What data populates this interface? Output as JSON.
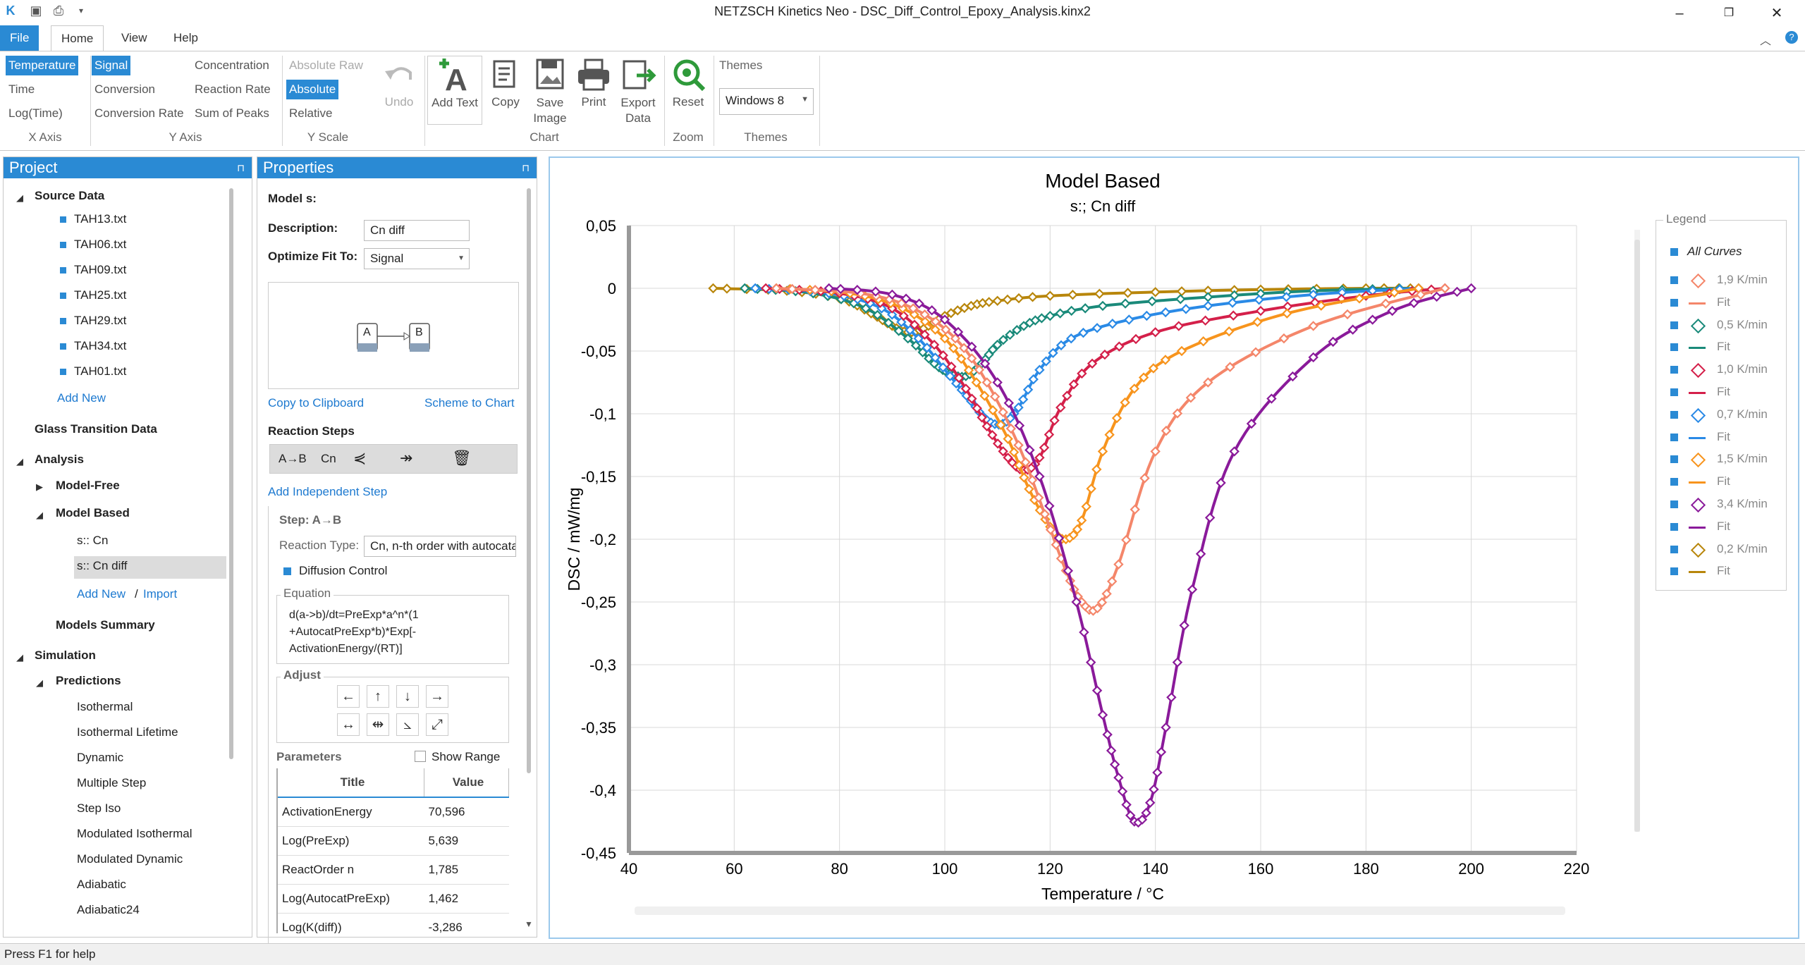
{
  "window": {
    "title": "NETZSCH Kinetics Neo - DSC_Diff_Control_Epoxy_Analysis.kinx2"
  },
  "tabs": [
    "File",
    "Home",
    "View",
    "Help"
  ],
  "ribbon": {
    "x_axis": {
      "items": [
        "Temperature",
        "Time",
        "Log(Time)"
      ],
      "selected": "Temperature",
      "label": "X Axis"
    },
    "y_axis": {
      "items": [
        "Signal",
        "Conversion",
        "Conversion Rate",
        "Concentration",
        "Reaction Rate",
        "Sum of Peaks"
      ],
      "selected": "Signal",
      "label": "Y Axis"
    },
    "y_scale": {
      "items": [
        "Absolute Raw",
        "Absolute",
        "Relative"
      ],
      "selected": "Absolute",
      "label": "Y Scale"
    },
    "undo": "Undo",
    "chart": {
      "buttons": [
        "Add Text",
        "Copy",
        "Save Image",
        "Print",
        "Export Data"
      ],
      "label": "Chart"
    },
    "zoom": {
      "buttons": [
        "Reset"
      ],
      "label": "Zoom"
    },
    "themes": {
      "title": "Themes",
      "value": "Windows 8",
      "label": "Themes"
    }
  },
  "project": {
    "title": "Project",
    "source_data": "Source Data",
    "files": [
      "TAH13.txt",
      "TAH06.txt",
      "TAH09.txt",
      "TAH25.txt",
      "TAH29.txt",
      "TAH34.txt",
      "TAH01.txt"
    ],
    "add_new": "Add New",
    "glass_transition": "Glass Transition Data",
    "analysis": "Analysis",
    "model_free": "Model-Free",
    "model_based": "Model Based",
    "models": [
      "s:: Cn",
      "s:: Cn diff"
    ],
    "add_new2": "Add New",
    "slash": "/",
    "import": "Import",
    "models_summary": "Models Summary",
    "simulation": "Simulation",
    "predictions": "Predictions",
    "prediction_items": [
      "Isothermal",
      "Isothermal Lifetime",
      "Dynamic",
      "Multiple Step",
      "Step Iso",
      "Modulated Isothermal",
      "Modulated Dynamic",
      "Adiabatic",
      "Adiabatic24"
    ]
  },
  "properties": {
    "title": "Properties",
    "model": "Model s:",
    "description_label": "Description:",
    "description_value": "Cn diff",
    "optimize_label": "Optimize Fit To:",
    "optimize_value": "Signal",
    "scheme_a": "A",
    "scheme_b": "B",
    "copy_clipboard": "Copy to Clipboard",
    "scheme_to_chart": "Scheme to Chart",
    "reaction_steps": "Reaction Steps",
    "step_tool_ab": "A→B",
    "step_tool_cn": "Cn",
    "add_independent": "Add Independent Step",
    "step_label": "Step: A→B",
    "reaction_type_label": "Reaction Type:",
    "reaction_type_value": "Cn, n-th order with autocatalysis",
    "diffusion_control": "Diffusion Control",
    "equation_label": "Equation",
    "equation_lines": [
      "d(a->b)/dt=PreExp*a^n*(1",
      "+AutocatPreExp*b)*Exp[-",
      "ActivationEnergy/(RT)]"
    ],
    "adjust_label": "Adjust",
    "parameters_label": "Parameters",
    "show_range": "Show Range",
    "table_headers": [
      "Title",
      "Value"
    ],
    "table_rows": [
      [
        "ActivationEnergy",
        "70,596"
      ],
      [
        "Log(PreExp)",
        "5,639"
      ],
      [
        "ReactOrder n",
        "1,785"
      ],
      [
        "Log(AutocatPreExp)",
        "1,462"
      ],
      [
        "Log(K(diff))",
        "-3,286"
      ]
    ]
  },
  "legend": {
    "title": "Legend",
    "all_curves": "All Curves",
    "items": [
      {
        "label": "1,9 K/min",
        "color": "#f4866a"
      },
      {
        "label": "Fit",
        "color": "#f4866a"
      },
      {
        "label": "0,5 K/min",
        "color": "#1a8a7a"
      },
      {
        "label": "Fit",
        "color": "#1a8a7a"
      },
      {
        "label": "1,0 K/min",
        "color": "#d4204a"
      },
      {
        "label": "Fit",
        "color": "#d4204a"
      },
      {
        "label": "0,7 K/min",
        "color": "#2a8ae6"
      },
      {
        "label": "Fit",
        "color": "#2a8ae6"
      },
      {
        "label": "1,5 K/min",
        "color": "#f7941d"
      },
      {
        "label": "Fit",
        "color": "#f7941d"
      },
      {
        "label": "3,4 K/min",
        "color": "#8a1a9a"
      },
      {
        "label": "Fit",
        "color": "#8a1a9a"
      },
      {
        "label": "0,2 K/min",
        "color": "#b8860b"
      },
      {
        "label": "Fit",
        "color": "#b8860b"
      }
    ]
  },
  "chart_data": {
    "type": "line",
    "title": "Model Based",
    "subtitle": "s:; Cn diff",
    "xlabel": "Temperature / °C",
    "ylabel": "DSC / mW/mg",
    "xlim": [
      40,
      220
    ],
    "ylim": [
      -0.45,
      0.05
    ],
    "xticks": [
      "40",
      "60",
      "80",
      "100",
      "120",
      "140",
      "160",
      "180",
      "200",
      "220"
    ],
    "yticks": [
      "0,05",
      "0",
      "-0,05",
      "-0,1",
      "-0,15",
      "-0,2",
      "-0,25",
      "-0,3",
      "-0,35",
      "-0,4",
      "-0,45"
    ],
    "grid": true,
    "series": [
      {
        "name": "0,2 K/min",
        "color": "#b8860b",
        "x": [
          56,
          70,
          80,
          86,
          90,
          93,
          96,
          100,
          105,
          110,
          120,
          140,
          160,
          180,
          190
        ],
        "y": [
          0,
          -0.002,
          -0.008,
          -0.02,
          -0.03,
          -0.035,
          -0.032,
          -0.022,
          -0.014,
          -0.01,
          -0.006,
          -0.003,
          -0.001,
          0,
          0
        ]
      },
      {
        "name": "0,5 K/min",
        "color": "#1a8a7a",
        "x": [
          62,
          75,
          85,
          93,
          98,
          101,
          104,
          107,
          110,
          115,
          120,
          130,
          150,
          170,
          190
        ],
        "y": [
          0,
          -0.004,
          -0.016,
          -0.04,
          -0.06,
          -0.068,
          -0.07,
          -0.06,
          -0.045,
          -0.03,
          -0.022,
          -0.014,
          -0.007,
          -0.002,
          0
        ]
      },
      {
        "name": "0,7 K/min",
        "color": "#2a8ae6",
        "x": [
          64,
          78,
          88,
          95,
          101,
          105,
          108,
          111,
          114,
          118,
          124,
          135,
          150,
          170,
          190
        ],
        "y": [
          0,
          -0.004,
          -0.016,
          -0.04,
          -0.07,
          -0.09,
          -0.105,
          -0.108,
          -0.095,
          -0.065,
          -0.04,
          -0.025,
          -0.014,
          -0.005,
          0
        ]
      },
      {
        "name": "1,0 K/min",
        "color": "#d4204a",
        "x": [
          66,
          80,
          90,
          98,
          104,
          108,
          112,
          115,
          118,
          122,
          128,
          140,
          160,
          180,
          195
        ],
        "y": [
          0,
          -0.004,
          -0.016,
          -0.045,
          -0.08,
          -0.11,
          -0.135,
          -0.145,
          -0.135,
          -0.095,
          -0.06,
          -0.035,
          -0.018,
          -0.006,
          0
        ]
      },
      {
        "name": "1,5 K/min",
        "color": "#f7941d",
        "x": [
          68,
          82,
          92,
          100,
          106,
          112,
          116,
          120,
          123,
          126,
          130,
          136,
          145,
          165,
          190
        ],
        "y": [
          0,
          -0.004,
          -0.016,
          -0.04,
          -0.075,
          -0.12,
          -0.16,
          -0.19,
          -0.2,
          -0.185,
          -0.13,
          -0.08,
          -0.05,
          -0.02,
          0
        ]
      },
      {
        "name": "1,9 K/min",
        "color": "#f4866a",
        "x": [
          68,
          84,
          94,
          102,
          108,
          114,
          119,
          123,
          126,
          129,
          133,
          140,
          150,
          170,
          195
        ],
        "y": [
          0,
          -0.004,
          -0.016,
          -0.04,
          -0.075,
          -0.125,
          -0.18,
          -0.225,
          -0.25,
          -0.255,
          -0.22,
          -0.13,
          -0.075,
          -0.03,
          0
        ]
      },
      {
        "name": "3,4 K/min",
        "color": "#8a1a9a",
        "x": [
          78,
          90,
          100,
          110,
          118,
          125,
          130,
          133,
          136,
          139,
          142,
          147,
          155,
          170,
          185,
          200
        ],
        "y": [
          0,
          -0.005,
          -0.025,
          -0.075,
          -0.15,
          -0.25,
          -0.34,
          -0.39,
          -0.425,
          -0.41,
          -0.35,
          -0.24,
          -0.13,
          -0.055,
          -0.018,
          0
        ]
      }
    ]
  },
  "status": {
    "text": "Press F1 for help"
  }
}
